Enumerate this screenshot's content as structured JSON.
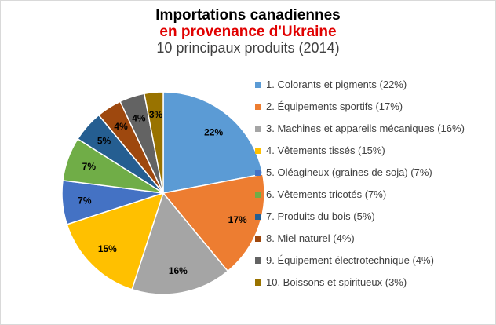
{
  "chart_data": {
    "type": "pie",
    "title": "Importations canadiennes",
    "subtitle_line1": "en provenance d'Ukraine",
    "subtitle_line2": "10 principaux produits (2014)",
    "legend_position": "right",
    "slices": [
      {
        "label": "1. Colorants et pigments (22%)",
        "value": 22,
        "data_label": "22%",
        "color": "#5b9bd5"
      },
      {
        "label": "2. Équipements sportifs (17%)",
        "value": 17,
        "data_label": "17%",
        "color": "#ed7d31"
      },
      {
        "label": "3. Machines et appareils mécaniques (16%)",
        "value": 16,
        "data_label": "16%",
        "color": "#a5a5a5"
      },
      {
        "label": "4. Vêtements tissés (15%)",
        "value": 15,
        "data_label": "15%",
        "color": "#ffc000"
      },
      {
        "label": "5. Oléagineux (graines de soja) (7%)",
        "value": 7,
        "data_label": "7%",
        "color": "#4472c4"
      },
      {
        "label": "6. Vêtements tricotés (7%)",
        "value": 7,
        "data_label": "7%",
        "color": "#70ad47"
      },
      {
        "label": "7. Produits du bois (5%)",
        "value": 5,
        "data_label": "5%",
        "color": "#255e91"
      },
      {
        "label": "8. Miel naturel (4%)",
        "value": 4,
        "data_label": "4%",
        "color": "#9e480e"
      },
      {
        "label": "9. Équipement électrotechnique (4%)",
        "value": 4,
        "data_label": "4%",
        "color": "#636363"
      },
      {
        "label": "10. Boissons et spiritueux (3%)",
        "value": 3,
        "data_label": "3%",
        "color": "#997300"
      }
    ]
  }
}
